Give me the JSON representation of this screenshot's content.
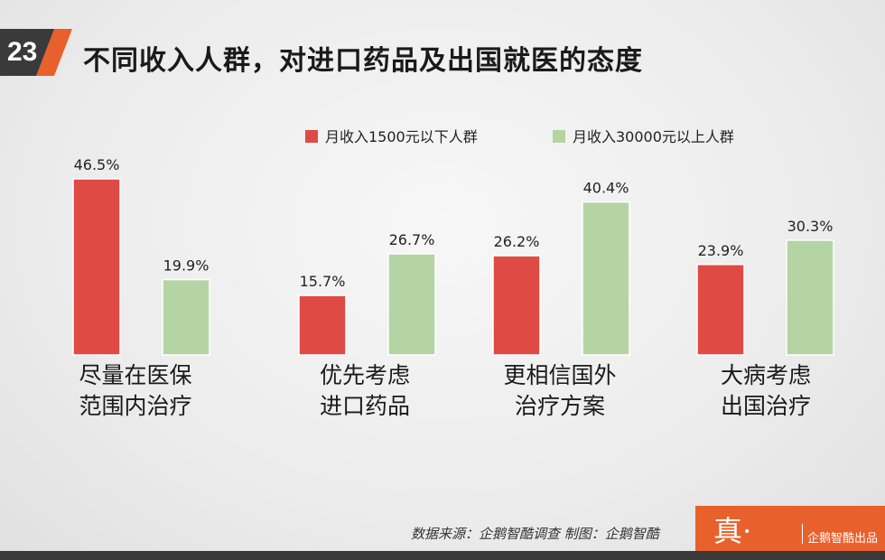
{
  "header": {
    "page_number": "23",
    "title": "不同收入人群，对进口药品及出国就医的态度"
  },
  "footer": {
    "source": "数据来源：企鹅智酷调查   制图：企鹅智酷",
    "brand_mark": "真·",
    "brand_sub": "企鹅智酷出品"
  },
  "colors": {
    "accent": "#e8612c",
    "dark": "#3a3a3a",
    "series_low": "#e04a45",
    "series_high": "#b4d4a4"
  },
  "chart_data": {
    "type": "bar",
    "categories": [
      [
        "尽量在医保",
        "范围内治疗"
      ],
      [
        "优先考虑",
        "进口药品"
      ],
      [
        "更相信国外",
        "治疗方案"
      ],
      [
        "大病考虑",
        "出国治疗"
      ]
    ],
    "series": [
      {
        "name": "月收入1500元以下人群",
        "values": [
          46.5,
          15.7,
          26.2,
          23.9
        ],
        "labels": [
          "46.5%",
          "15.7%",
          "26.2%",
          "23.9%"
        ]
      },
      {
        "name": "月收入30000元以上人群",
        "values": [
          19.9,
          26.7,
          40.4,
          30.3
        ],
        "labels": [
          "19.9%",
          "26.7%",
          "40.4%",
          "30.3%"
        ]
      }
    ],
    "ylim": [
      0,
      50
    ],
    "grid": false,
    "legend": "top-right"
  }
}
